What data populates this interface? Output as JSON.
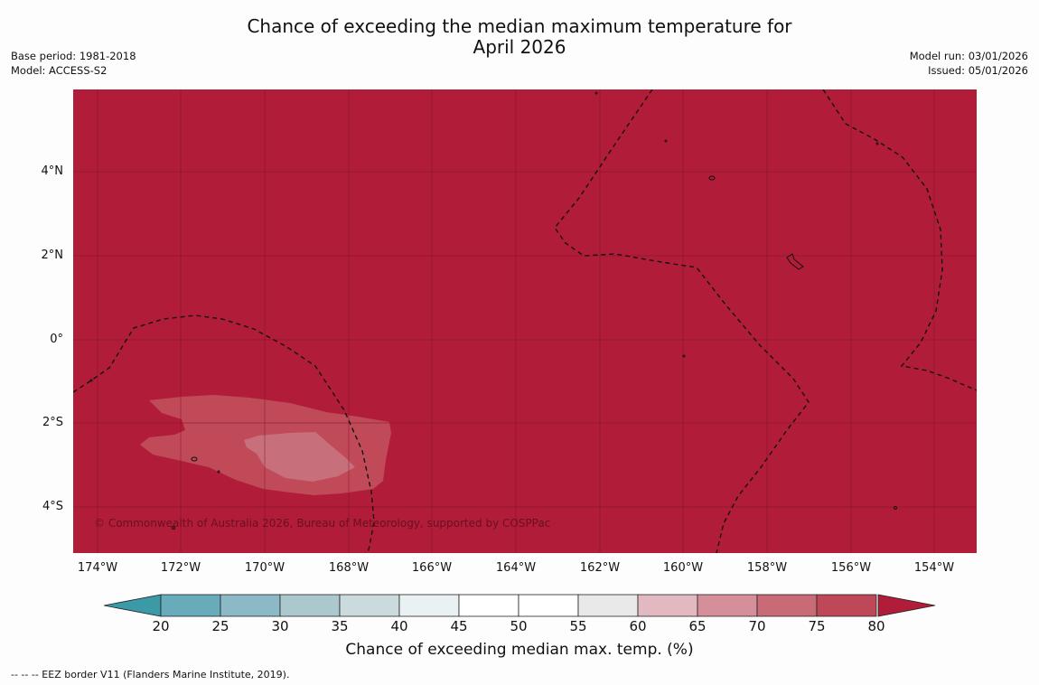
{
  "title_line1": "Chance of exceeding the median maximum temperature for",
  "title_line2": "April 2026",
  "meta_left": {
    "base_period": "Base period: 1981-2018",
    "model": "Model: ACCESS-S2"
  },
  "meta_right": {
    "model_run": "Model run: 03/01/2026",
    "issued": "Issued: 05/01/2026"
  },
  "copyright": "© Commonwealth of Australia 2026, Bureau of Meteorology, supported by COSPPac",
  "lat_labels": [
    "4°N",
    "2°N",
    "0°",
    "2°S",
    "4°S"
  ],
  "lon_labels": [
    "174°W",
    "172°W",
    "170°W",
    "168°W",
    "166°W",
    "164°W",
    "162°W",
    "160°W",
    "158°W",
    "156°W",
    "154°W"
  ],
  "colorbar": {
    "ticks": [
      "20",
      "25",
      "30",
      "35",
      "40",
      "45",
      "50",
      "55",
      "60",
      "65",
      "70",
      "75",
      "80"
    ],
    "title": "Chance of exceeding median max. temp. (%)",
    "colors": {
      "under": "#3c9aa6",
      "bins": [
        "#68abbb",
        "#8bb9c5",
        "#abc8ce",
        "#cbdadd",
        "#eaf1f2",
        "#ffffff",
        "#ffffff",
        "#e9e9e9",
        "#e2b9c0",
        "#d58f9a",
        "#c96a77",
        "#be4858"
      ],
      "over": "#b11d39"
    }
  },
  "map_colors": {
    "background": "#b11d39",
    "band_70_75": "#c04a58",
    "band_65_70": "#c76f7b"
  },
  "footnote": "--  --  -- EEZ border V11 (Flanders Marine Institute, 2019)."
}
